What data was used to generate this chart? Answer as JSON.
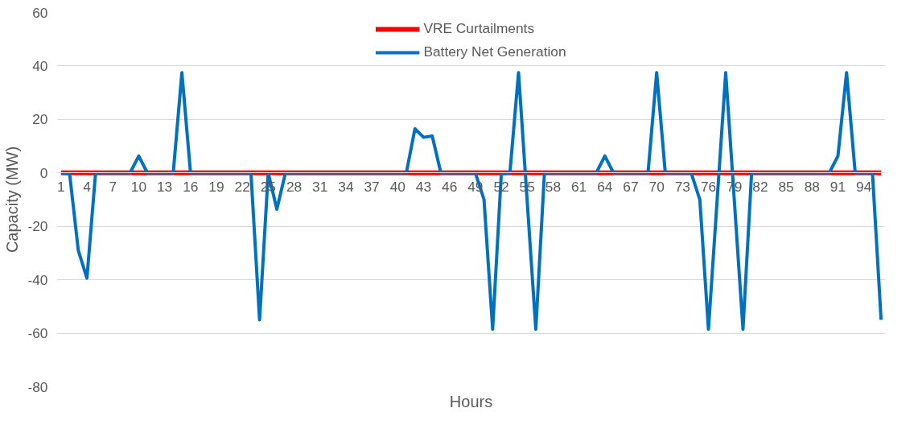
{
  "chart_data": {
    "type": "line",
    "xlabel": "Hours",
    "ylabel": "Capacity (MW)",
    "categories": [
      "1",
      null,
      null,
      "4",
      null,
      null,
      "7",
      null,
      null,
      "10",
      null,
      null,
      "13",
      null,
      null,
      "16",
      null,
      null,
      "19",
      null,
      null,
      "22",
      null,
      null,
      "25",
      null,
      null,
      "28",
      null,
      null,
      "31",
      null,
      null,
      "34",
      null,
      null,
      "37",
      null,
      null,
      "40",
      null,
      null,
      "43",
      null,
      null,
      "46",
      null,
      null,
      "49",
      null,
      null,
      "52",
      null,
      null,
      "55",
      null,
      null,
      "58",
      null,
      null,
      "61",
      null,
      null,
      "64",
      null,
      null,
      "67",
      null,
      null,
      "70",
      null,
      null,
      "73",
      null,
      null,
      "76",
      null,
      null,
      "79",
      null,
      null,
      "82",
      null,
      null,
      "85",
      null,
      null,
      "88",
      null,
      null,
      "91",
      null,
      null,
      "94",
      null,
      null
    ],
    "series": [
      {
        "name": "VRE Curtailments",
        "color": "#ff0000",
        "values": [
          0,
          0,
          0,
          0,
          0,
          0,
          0,
          0,
          0,
          0,
          0,
          0,
          0,
          0,
          0,
          0,
          0,
          0,
          0,
          0,
          0,
          0,
          0,
          0,
          0,
          0,
          0,
          0,
          0,
          0,
          0,
          0,
          0,
          0,
          0,
          0,
          0,
          0,
          0,
          0,
          0,
          0,
          0,
          0,
          0,
          0,
          0,
          0,
          0,
          0,
          0,
          0,
          0,
          0,
          0,
          0,
          0,
          0,
          0,
          0,
          0,
          0,
          0,
          0,
          0,
          0,
          0,
          0,
          0,
          0,
          0,
          0,
          0,
          0,
          0,
          0,
          0,
          0,
          0,
          0,
          0,
          0,
          0,
          0,
          0,
          0,
          0,
          0,
          0,
          0,
          0,
          0,
          0,
          0,
          0,
          0
        ]
      },
      {
        "name": "Battery Net Generation",
        "color": "#0070c0",
        "values": [
          0,
          -0.5,
          -29,
          -39.4,
          0,
          0,
          0,
          0,
          0,
          6.3,
          0,
          0,
          0,
          0,
          37.5,
          0,
          0,
          0,
          0,
          0,
          0,
          0,
          0,
          -55,
          0,
          -13.6,
          0,
          0,
          0,
          0,
          0,
          0,
          0,
          0,
          0,
          0,
          0,
          0,
          0,
          0,
          0,
          16.5,
          13.3,
          13.8,
          0,
          0,
          0,
          0,
          0,
          -10,
          -58.5,
          -0.5,
          0,
          37.5,
          -10.5,
          -58.5,
          0,
          0,
          0,
          0,
          0,
          0,
          0,
          6.3,
          0,
          0,
          0,
          0,
          0,
          37.5,
          0,
          0,
          0,
          0,
          -10,
          -58.5,
          -10.5,
          37.5,
          -10.5,
          -58.5,
          0,
          0,
          0,
          0,
          0,
          0,
          0,
          0,
          0,
          0,
          6.3,
          37.5,
          0,
          0,
          0,
          -55
        ]
      }
    ],
    "ylim": [
      -80,
      60
    ],
    "yticks": [
      -80,
      -60,
      -40,
      -20,
      0,
      20,
      40,
      60
    ],
    "grid": "y",
    "legend": "top",
    "marker": "none",
    "line_style": "solid"
  }
}
